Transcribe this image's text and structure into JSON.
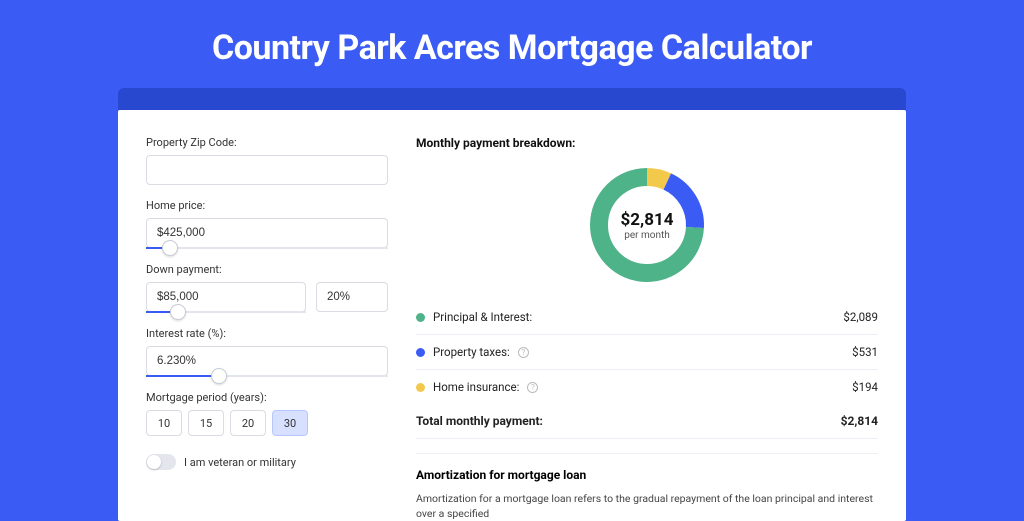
{
  "page_title": "Country Park Acres Mortgage Calculator",
  "accent": "#3a5cf5",
  "left": {
    "zip": {
      "label": "Property Zip Code:",
      "value": ""
    },
    "price": {
      "label": "Home price:",
      "value": "$425,000",
      "slider_pct": 10
    },
    "down": {
      "label": "Down payment:",
      "value": "$85,000",
      "pct": "20%",
      "slider_pct": 20
    },
    "rate": {
      "label": "Interest rate (%):",
      "value": "6.230%",
      "slider_pct": 30
    },
    "period": {
      "label": "Mortgage period (years):",
      "options": [
        "10",
        "15",
        "20",
        "30"
      ],
      "selected": "30"
    },
    "veteran_label": "I am veteran or military",
    "veteran_on": false
  },
  "right": {
    "breakdown_title": "Monthly payment breakdown:",
    "center_value": "$2,814",
    "center_sub": "per month",
    "colors": {
      "pi": "#4fb389",
      "tax": "#3a5cf5",
      "ins": "#f3c94c",
      "track": "#e9ecf1"
    },
    "segments": {
      "pi_deg": 267,
      "tax_deg": 68,
      "ins_deg": 25
    },
    "lines": [
      {
        "key": "pi",
        "label": "Principal & Interest:",
        "info": false,
        "value": "$2,089"
      },
      {
        "key": "tax",
        "label": "Property taxes:",
        "info": true,
        "value": "$531"
      },
      {
        "key": "ins",
        "label": "Home insurance:",
        "info": true,
        "value": "$194"
      }
    ],
    "total_label": "Total monthly payment:",
    "total_value": "$2,814",
    "amort_title": "Amortization for mortgage loan",
    "amort_text": "Amortization for a mortgage loan refers to the gradual repayment of the loan principal and interest over a specified"
  }
}
